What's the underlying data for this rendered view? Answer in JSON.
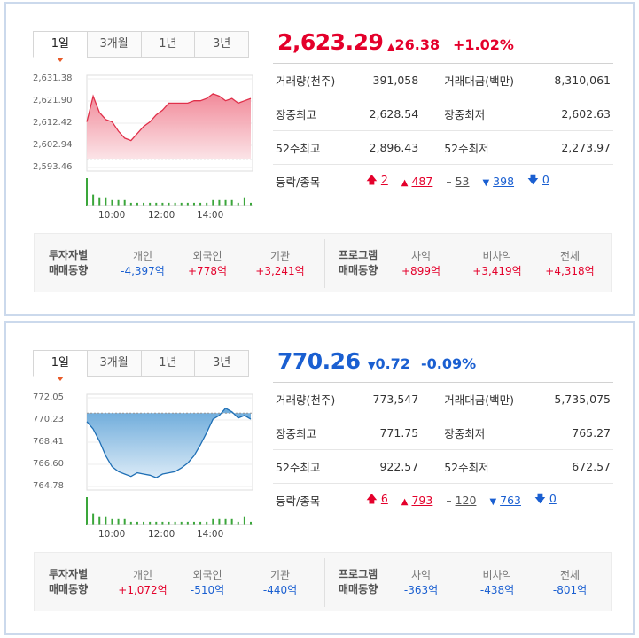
{
  "panels": [
    {
      "tabs": [
        "1일",
        "3개월",
        "1년",
        "3년"
      ],
      "active_tab": "1일",
      "price": "2,623.29",
      "change_arrow": "▲",
      "change": "26.38",
      "change_pct": "+1.02%",
      "direction": "up",
      "y_ticks": [
        "2,631.38",
        "2,621.90",
        "2,612.42",
        "2,602.94",
        "2,593.46"
      ],
      "x_ticks": [
        "10:00",
        "12:00",
        "14:00"
      ],
      "stats": [
        {
          "k1": "거래량(천주)",
          "v1": "391,058",
          "k2": "거래대금(백만)",
          "v2": "8,310,061"
        },
        {
          "k1": "장중최고",
          "v1": "2,628.54",
          "k2": "장중최저",
          "v2": "2,602.63"
        },
        {
          "k1": "52주최고",
          "v1": "2,896.43",
          "k2": "52주최저",
          "v2": "2,273.97"
        }
      ],
      "rise_fall": {
        "label": "등락/종목",
        "upper_limit": "2",
        "rise": "487",
        "flat": "53",
        "fall": "398",
        "lower_limit": "0"
      },
      "investor_label": [
        "투자자별",
        "매매동향"
      ],
      "investors": [
        {
          "name": "개인",
          "value": "-4,397억",
          "dir": "down"
        },
        {
          "name": "외국인",
          "value": "+778억",
          "dir": "up"
        },
        {
          "name": "기관",
          "value": "+3,241억",
          "dir": "up"
        }
      ],
      "program_label": [
        "프로그램",
        "매매동향"
      ],
      "program": [
        {
          "name": "차익",
          "value": "+899억",
          "dir": "up"
        },
        {
          "name": "비차익",
          "value": "+3,419억",
          "dir": "up"
        },
        {
          "name": "전체",
          "value": "+4,318억",
          "dir": "up"
        }
      ],
      "colors": {
        "line": "#e0304a",
        "fill_top": "#f07d8e",
        "fill_bottom": "#fbe1e5",
        "volume": "#3aa63a"
      }
    },
    {
      "tabs": [
        "1일",
        "3개월",
        "1년",
        "3년"
      ],
      "active_tab": "1일",
      "price": "770.26",
      "change_arrow": "▼",
      "change": "0.72",
      "change_pct": "-0.09%",
      "direction": "down",
      "y_ticks": [
        "772.05",
        "770.23",
        "768.41",
        "766.60",
        "764.78"
      ],
      "x_ticks": [
        "10:00",
        "12:00",
        "14:00"
      ],
      "stats": [
        {
          "k1": "거래량(천주)",
          "v1": "773,547",
          "k2": "거래대금(백만)",
          "v2": "5,735,075"
        },
        {
          "k1": "장중최고",
          "v1": "771.75",
          "k2": "장중최저",
          "v2": "765.27"
        },
        {
          "k1": "52주최고",
          "v1": "922.57",
          "k2": "52주최저",
          "v2": "672.57"
        }
      ],
      "rise_fall": {
        "label": "등락/종목",
        "upper_limit": "6",
        "rise": "793",
        "flat": "120",
        "fall": "763",
        "lower_limit": "0"
      },
      "investor_label": [
        "투자자별",
        "매매동향"
      ],
      "investors": [
        {
          "name": "개인",
          "value": "+1,072억",
          "dir": "up"
        },
        {
          "name": "외국인",
          "value": "-510억",
          "dir": "down"
        },
        {
          "name": "기관",
          "value": "-440억",
          "dir": "down"
        }
      ],
      "program_label": [
        "프로그램",
        "매매동향"
      ],
      "program": [
        {
          "name": "차익",
          "value": "-363억",
          "dir": "down"
        },
        {
          "name": "비차익",
          "value": "-438억",
          "dir": "down"
        },
        {
          "name": "전체",
          "value": "-801억",
          "dir": "down"
        }
      ],
      "colors": {
        "line": "#1f6fb5",
        "fill_top": "#5aa0d6",
        "fill_bottom": "#d6e8f6",
        "volume": "#3aa63a"
      }
    }
  ],
  "chart_data": [
    {
      "type": "area",
      "x": [
        "09:00",
        "09:15",
        "09:30",
        "09:45",
        "10:00",
        "10:15",
        "10:30",
        "10:45",
        "11:00",
        "11:15",
        "11:30",
        "11:45",
        "12:00",
        "12:15",
        "12:30",
        "12:45",
        "13:00",
        "13:15",
        "13:30",
        "13:45",
        "14:00",
        "14:15",
        "14:30",
        "14:45",
        "15:00",
        "15:15",
        "15:30"
      ],
      "values": [
        2613,
        2624,
        2617,
        2614,
        2613,
        2609,
        2606,
        2605,
        2608,
        2611,
        2613,
        2616,
        2618,
        2621,
        2621,
        2621,
        2621,
        2622,
        2622,
        2623,
        2625,
        2624,
        2622,
        2623,
        2621,
        2622,
        2623
      ],
      "baseline": 2597,
      "ylim": [
        2593.46,
        2631.38
      ],
      "volume": [
        10,
        4,
        3,
        3,
        2,
        2,
        2,
        1,
        1,
        1,
        1,
        1,
        1,
        1,
        1,
        1,
        1,
        1,
        1,
        1,
        2,
        2,
        2,
        2,
        1,
        3,
        1
      ]
    },
    {
      "type": "area",
      "x": [
        "09:00",
        "09:15",
        "09:30",
        "09:45",
        "10:00",
        "10:15",
        "10:30",
        "10:45",
        "11:00",
        "11:15",
        "11:30",
        "11:45",
        "12:00",
        "12:15",
        "12:30",
        "12:45",
        "13:00",
        "13:15",
        "13:30",
        "13:45",
        "14:00",
        "14:15",
        "14:30",
        "14:45",
        "15:00",
        "15:15",
        "15:30"
      ],
      "values": [
        770.1,
        769.5,
        768.5,
        767.3,
        766.4,
        766.0,
        765.8,
        765.6,
        765.9,
        765.8,
        765.7,
        765.5,
        765.8,
        765.9,
        766.0,
        766.3,
        766.7,
        767.3,
        768.2,
        769.2,
        770.3,
        770.6,
        771.2,
        770.9,
        770.4,
        770.6,
        770.3
      ],
      "baseline": 770.8,
      "ylim": [
        764.78,
        772.05
      ],
      "volume": [
        10,
        4,
        3,
        3,
        2,
        2,
        2,
        1,
        1,
        1,
        1,
        1,
        1,
        1,
        1,
        1,
        1,
        1,
        1,
        1,
        2,
        2,
        2,
        2,
        1,
        3,
        1
      ]
    }
  ]
}
